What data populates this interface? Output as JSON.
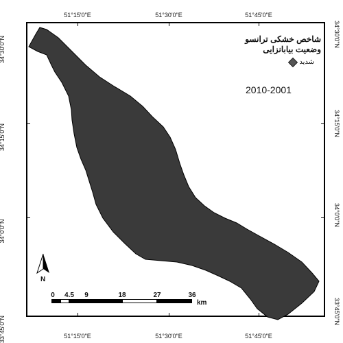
{
  "longitude_labels": [
    "51°15'0\"E",
    "51°30'0\"E",
    "51°45'0\"E"
  ],
  "latitude_labels": [
    "34°30'0\"N",
    "34°15'0\"N",
    "34°0'0\"N",
    "33°45'0\"N"
  ],
  "legend": {
    "title_line1": "شاخص خشکی ترانسو",
    "title_line2": "وضعیت بیابانزایی",
    "item_label": "شدید",
    "item_color": "#555555",
    "period": "2010-2001"
  },
  "region_color": "#3a3a3a",
  "north_label": "N",
  "scale_bar": {
    "ticks": [
      "0",
      "4.5",
      "9",
      "18",
      "27",
      "36"
    ],
    "unit": "km"
  }
}
